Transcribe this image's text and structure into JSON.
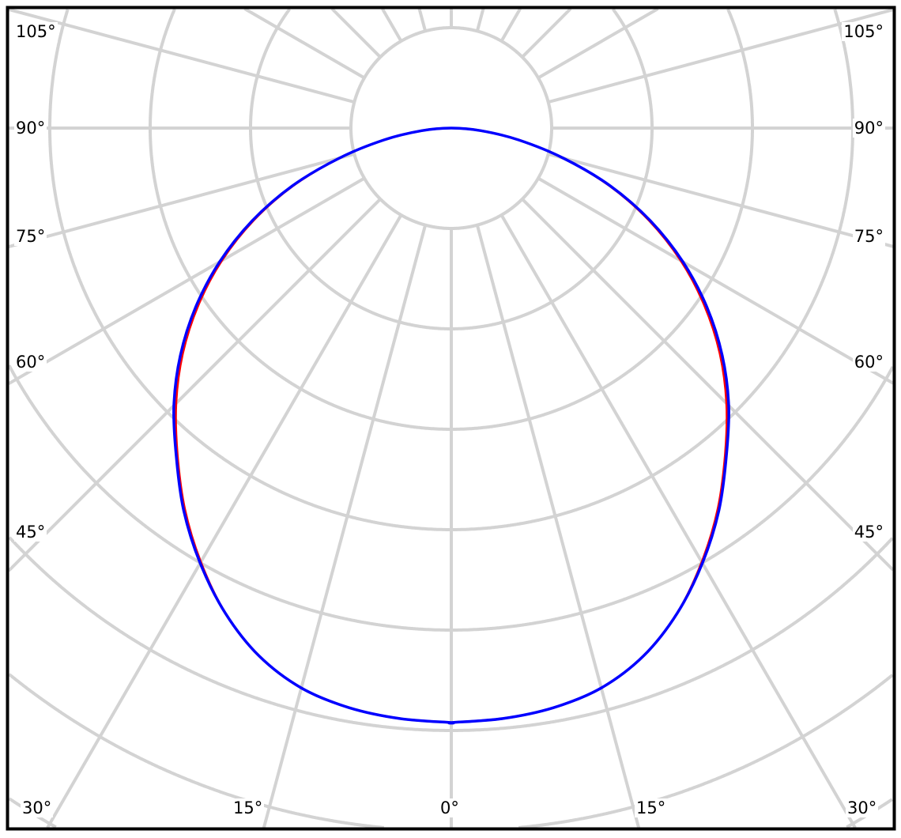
{
  "chart_data": {
    "type": "polar",
    "title": "",
    "angle_unit": "degrees",
    "angle_zero_direction": "down",
    "angle_grid_step": 15,
    "radial_grid": true,
    "radial_tick_labels": [],
    "angle_labels": {
      "left": [
        "105°",
        "90°",
        "75°",
        "60°",
        "45°"
      ],
      "right": [
        "105°",
        "90°",
        "75°",
        "60°",
        "45°"
      ],
      "bottom": [
        "30°",
        "15°",
        "0°",
        "15°",
        "30°"
      ]
    },
    "symmetric": true,
    "angles": [
      0,
      5,
      10,
      15,
      20,
      25,
      30,
      35,
      40,
      45,
      50,
      55,
      60,
      65,
      70,
      75,
      80,
      85,
      90
    ],
    "series": [
      {
        "color": "#ff0000",
        "values": [
          1.0,
          0.997,
          0.99,
          0.975,
          0.945,
          0.9,
          0.843,
          0.782,
          0.717,
          0.655,
          0.59,
          0.52,
          0.446,
          0.367,
          0.283,
          0.195,
          0.115,
          0.05,
          0.0
        ]
      },
      {
        "color": "#0000ff",
        "values": [
          1.0,
          0.997,
          0.99,
          0.975,
          0.945,
          0.9,
          0.845,
          0.785,
          0.72,
          0.66,
          0.595,
          0.525,
          0.45,
          0.37,
          0.285,
          0.195,
          0.115,
          0.05,
          0.0
        ]
      }
    ],
    "grid_color": "#d3d3d3",
    "frame_color": "#000000"
  }
}
